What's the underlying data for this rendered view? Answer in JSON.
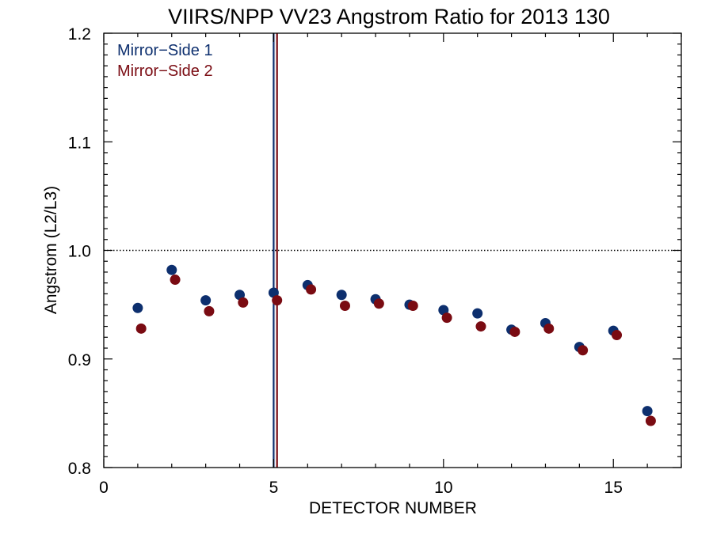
{
  "chart_data": {
    "type": "scatter",
    "title": "VIIRS/NPP VV23 Angstrom Ratio for 2013 130",
    "xlabel": "DETECTOR NUMBER",
    "ylabel": "Angstrom (L2/L3)",
    "xlim": [
      0,
      17
    ],
    "ylim": [
      0.8,
      1.2
    ],
    "xticks": [
      0,
      5,
      10,
      15
    ],
    "xtick_labels": [
      "0",
      "5",
      "10",
      "15"
    ],
    "yticks": [
      0.8,
      0.9,
      1.0,
      1.1,
      1.2
    ],
    "ytick_labels": [
      "0.8",
      "0.9",
      "1.0",
      "1.1",
      "1.2"
    ],
    "reference_line": {
      "y": 1.0,
      "style": "dotted",
      "color": "#000000"
    },
    "vertical_lines": [
      {
        "x": 5.0,
        "color": "#0d2f6e"
      },
      {
        "x": 5.1,
        "color": "#7a0b12"
      }
    ],
    "legend_position": "top-left",
    "series": [
      {
        "name": "Mirror−Side 1",
        "color": "#0d2f6e",
        "x": [
          1,
          2,
          3,
          4,
          5,
          6,
          7,
          8,
          9,
          10,
          11,
          12,
          13,
          14,
          15,
          16
        ],
        "y": [
          0.947,
          0.982,
          0.954,
          0.959,
          0.961,
          0.968,
          0.959,
          0.955,
          0.95,
          0.945,
          0.942,
          0.927,
          0.933,
          0.911,
          0.926,
          0.852
        ]
      },
      {
        "name": "Mirror−Side 2",
        "color": "#7a0b12",
        "x": [
          1.1,
          2.1,
          3.1,
          4.1,
          5.1,
          6.1,
          7.1,
          8.1,
          9.1,
          10.1,
          11.1,
          12.1,
          13.1,
          14.1,
          15.1,
          16.1
        ],
        "y": [
          0.928,
          0.973,
          0.944,
          0.952,
          0.954,
          0.964,
          0.949,
          0.951,
          0.949,
          0.938,
          0.93,
          0.925,
          0.928,
          0.908,
          0.922,
          0.843
        ]
      }
    ]
  }
}
